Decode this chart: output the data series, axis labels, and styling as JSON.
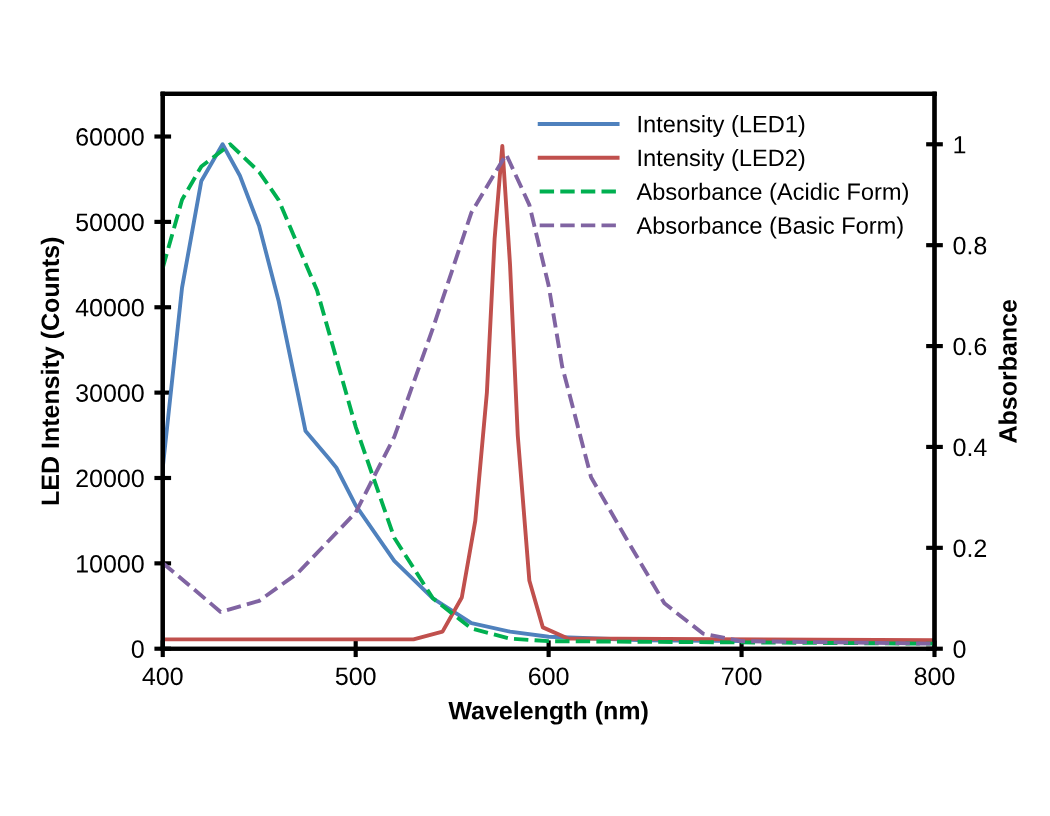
{
  "chart_data": {
    "type": "line",
    "xlabel": "Wavelength (nm)",
    "ylabel": "LED Intensity (Counts)",
    "y2label": "Absorbance",
    "xlim": [
      400,
      800
    ],
    "xticks": [
      400,
      500,
      600,
      700,
      800
    ],
    "ylim": [
      0,
      65000
    ],
    "yticks": [
      0,
      10000,
      20000,
      30000,
      40000,
      50000,
      60000
    ],
    "y2lim": [
      0,
      1.1
    ],
    "y2ticks": [
      0,
      0.2,
      0.4,
      0.6,
      0.8,
      1
    ],
    "legend": "top right",
    "grid": false,
    "marker": "none",
    "series": [
      {
        "name": "Intensity (LED1)",
        "color": "#4f81bd",
        "line_style": "solid",
        "x": [
          400,
          410,
          420,
          431,
          440,
          450,
          460,
          470,
          474,
          486,
          490,
          500,
          520,
          540,
          560,
          580,
          600,
          650,
          700,
          800
        ],
        "values": [
          21200,
          42300,
          54800,
          59100,
          55400,
          49500,
          40800,
          29900,
          25500,
          22300,
          21200,
          16800,
          10300,
          5900,
          3000,
          2000,
          1400,
          1000,
          900,
          800
        ]
      },
      {
        "name": "Intensity (LED2)",
        "color": "#c0504d",
        "line_style": "solid",
        "x": [
          400,
          530,
          545,
          555,
          562,
          568,
          572,
          576,
          580,
          584,
          590,
          597,
          610,
          800
        ],
        "values": [
          1100,
          1100,
          2000,
          6000,
          15000,
          30000,
          48000,
          58900,
          45000,
          25000,
          8000,
          2500,
          1200,
          1000
        ]
      },
      {
        "name": "Absorbance (Acidic Form)",
        "color": "#00b050",
        "line_style": "dashed",
        "axis": "y2",
        "x": [
          400,
          410,
          420,
          435,
          450,
          460,
          480,
          500,
          520,
          540,
          560,
          580,
          600,
          800
        ],
        "values": [
          0.755,
          0.89,
          0.956,
          1.0,
          0.945,
          0.89,
          0.71,
          0.44,
          0.22,
          0.1,
          0.04,
          0.02,
          0.015,
          0.01
        ]
      },
      {
        "name": "Absorbance (Basic Form)",
        "color": "#8064a2",
        "line_style": "dashed",
        "axis": "y2",
        "x": [
          400,
          430,
          450,
          470,
          500,
          520,
          540,
          560,
          578,
          590,
          600,
          607,
          622,
          640,
          660,
          680,
          700,
          800
        ],
        "values": [
          0.17,
          0.073,
          0.095,
          0.15,
          0.27,
          0.42,
          0.635,
          0.865,
          0.98,
          0.88,
          0.72,
          0.56,
          0.34,
          0.22,
          0.09,
          0.03,
          0.015,
          0.01
        ]
      }
    ]
  }
}
